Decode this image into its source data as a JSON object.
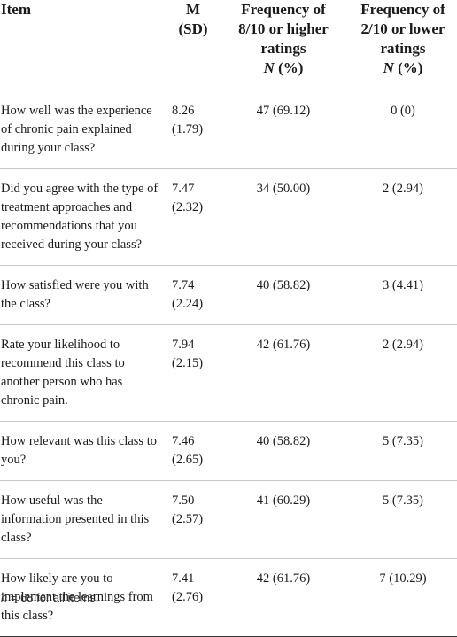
{
  "table": {
    "headers": {
      "item": "Item",
      "m_line1": "M",
      "m_line2": "(SD)",
      "hi_line1": "Frequency of",
      "hi_line2": "8/10 or higher",
      "hi_line3": "ratings",
      "hi_unit_n": "N",
      "hi_unit_pct": " (%)",
      "lo_line1": "Frequency of",
      "lo_line2": "2/10 or lower",
      "lo_line3": "ratings",
      "lo_unit_n": "N",
      "lo_unit_pct": " (%)"
    },
    "rows": [
      {
        "item": "How well was the experience of chronic pain explained during your class?",
        "m": "8.26",
        "sd": "(1.79)",
        "high": "47 (69.12)",
        "low": "0 (0)"
      },
      {
        "item": "Did you agree with the type of treatment approaches and recommendations that you received during your class?",
        "m": "7.47",
        "sd": "(2.32)",
        "high": "34 (50.00)",
        "low": "2 (2.94)"
      },
      {
        "item": "How satisfied were you with the class?",
        "m": "7.74",
        "sd": "(2.24)",
        "high": "40 (58.82)",
        "low": "3 (4.41)"
      },
      {
        "item": "Rate your likelihood to recommend this class to another person who has chronic pain.",
        "m": "7.94",
        "sd": "(2.15)",
        "high": "42 (61.76)",
        "low": "2 (2.94)"
      },
      {
        "item": "How relevant was this class to you?",
        "m": "7.46",
        "sd": "(2.65)",
        "high": "40 (58.82)",
        "low": "5 (7.35)"
      },
      {
        "item": "How useful was the information presented in this class?",
        "m": "7.50",
        "sd": "(2.57)",
        "high": "41 (60.29)",
        "low": "5 (7.35)"
      },
      {
        "item": "How likely are you to implement the learnings from this class?",
        "m": "7.41",
        "sd": "(2.76)",
        "high": "42 (61.76)",
        "low": "7 (10.29)"
      }
    ]
  },
  "footnote": {
    "n_symbol": "n",
    "text": " = 68 for all items."
  }
}
